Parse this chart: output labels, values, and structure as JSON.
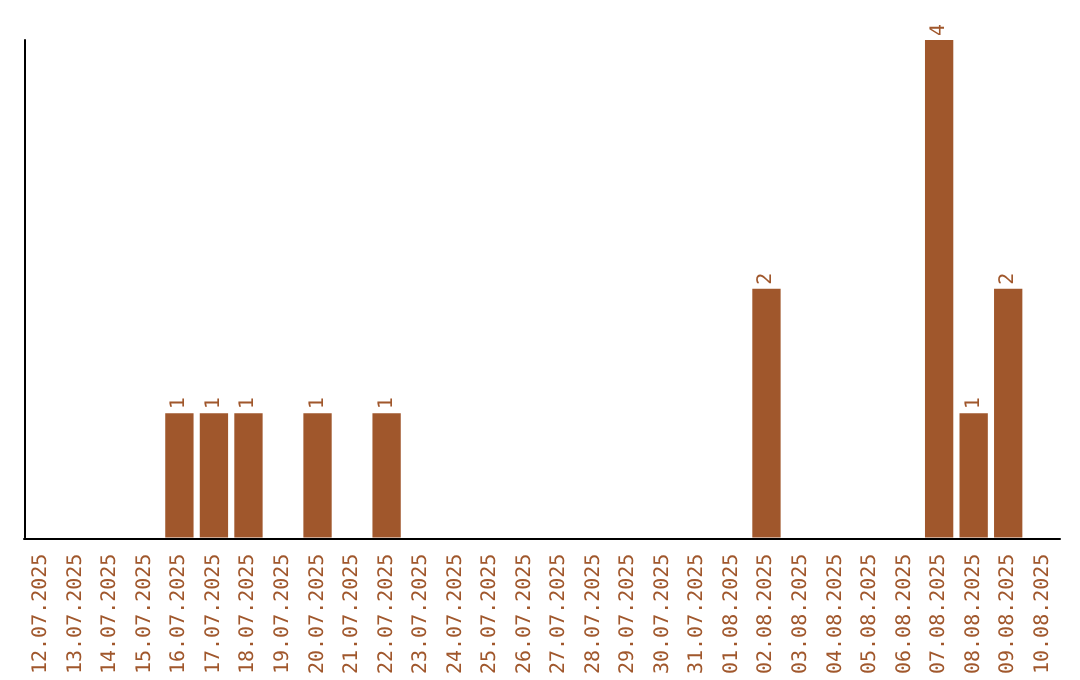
{
  "chart_data": {
    "type": "bar",
    "categories": [
      "12.07.2025",
      "13.07.2025",
      "14.07.2025",
      "15.07.2025",
      "16.07.2025",
      "17.07.2025",
      "18.07.2025",
      "19.07.2025",
      "20.07.2025",
      "21.07.2025",
      "22.07.2025",
      "23.07.2025",
      "24.07.2025",
      "25.07.2025",
      "26.07.2025",
      "27.07.2025",
      "28.07.2025",
      "29.07.2025",
      "30.07.2025",
      "31.07.2025",
      "01.08.2025",
      "02.08.2025",
      "03.08.2025",
      "04.08.2025",
      "05.08.2025",
      "06.08.2025",
      "07.08.2025",
      "08.08.2025",
      "09.08.2025",
      "10.08.2025"
    ],
    "values": [
      0,
      0,
      0,
      0,
      1,
      1,
      1,
      0,
      1,
      0,
      1,
      0,
      0,
      0,
      0,
      0,
      0,
      0,
      0,
      0,
      0,
      2,
      0,
      0,
      0,
      0,
      4,
      1,
      2,
      0
    ],
    "value_labels": [
      null,
      null,
      null,
      null,
      "1",
      "1",
      "1",
      null,
      "1",
      null,
      "1",
      null,
      null,
      null,
      null,
      null,
      null,
      null,
      null,
      null,
      null,
      "2",
      null,
      null,
      null,
      null,
      "4",
      "1",
      "2",
      null
    ],
    "color": "#a0572c",
    "grid": false,
    "tick_labels": "x"
  }
}
